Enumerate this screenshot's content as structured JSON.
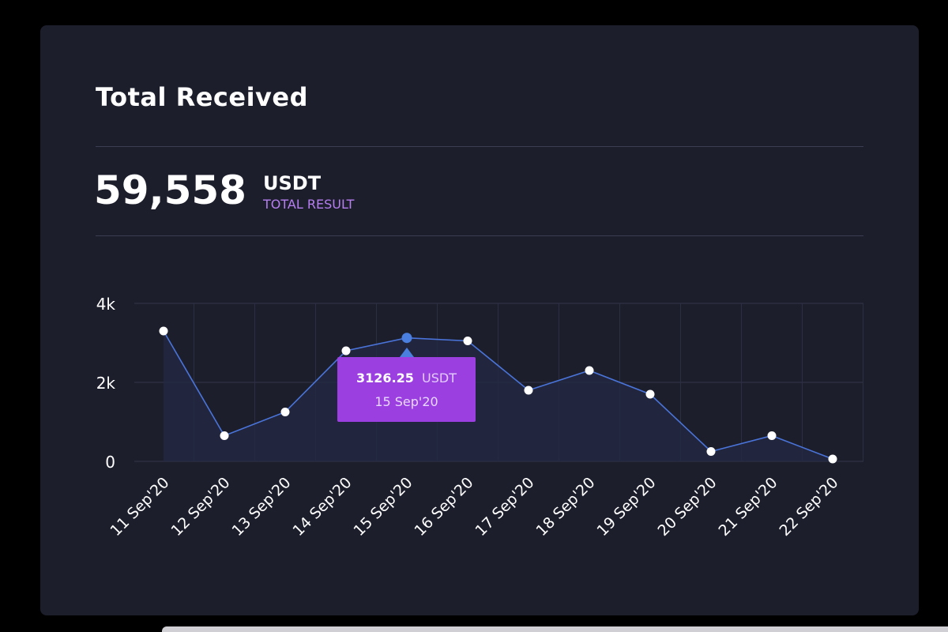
{
  "card": {
    "title": "Total Received",
    "total_value": "59,558",
    "total_unit": "USDT",
    "total_label": "TOTAL RESULT"
  },
  "colors": {
    "background": "#000000",
    "card": "#1c1e2c",
    "line": "#4a74d9",
    "highlight_point": "#4a7fe0",
    "tooltip": "#9b3fe0",
    "label_accent": "#b67ef0"
  },
  "chart_data": {
    "type": "area",
    "categories": [
      "11 Sep'20",
      "12 Sep'20",
      "13 Sep'20",
      "14 Sep'20",
      "15 Sep'20",
      "16 Sep'20",
      "17 Sep'20",
      "18 Sep'20",
      "19 Sep'20",
      "20 Sep'20",
      "21 Sep'20",
      "22 Sep'20"
    ],
    "series": [
      {
        "name": "USDT",
        "values": [
          3300,
          650,
          1250,
          2800,
          3126.25,
          3050,
          1800,
          2300,
          1700,
          250,
          650,
          60
        ]
      }
    ],
    "yticks": [
      {
        "value": 0,
        "label": "0"
      },
      {
        "value": 2000,
        "label": "2k"
      },
      {
        "value": 4000,
        "label": "4k"
      }
    ],
    "ylim": [
      0,
      4000
    ],
    "highlight_index": 4,
    "tooltip": {
      "value": "3126.25",
      "unit": "USDT",
      "date": "15 Sep'20"
    }
  }
}
